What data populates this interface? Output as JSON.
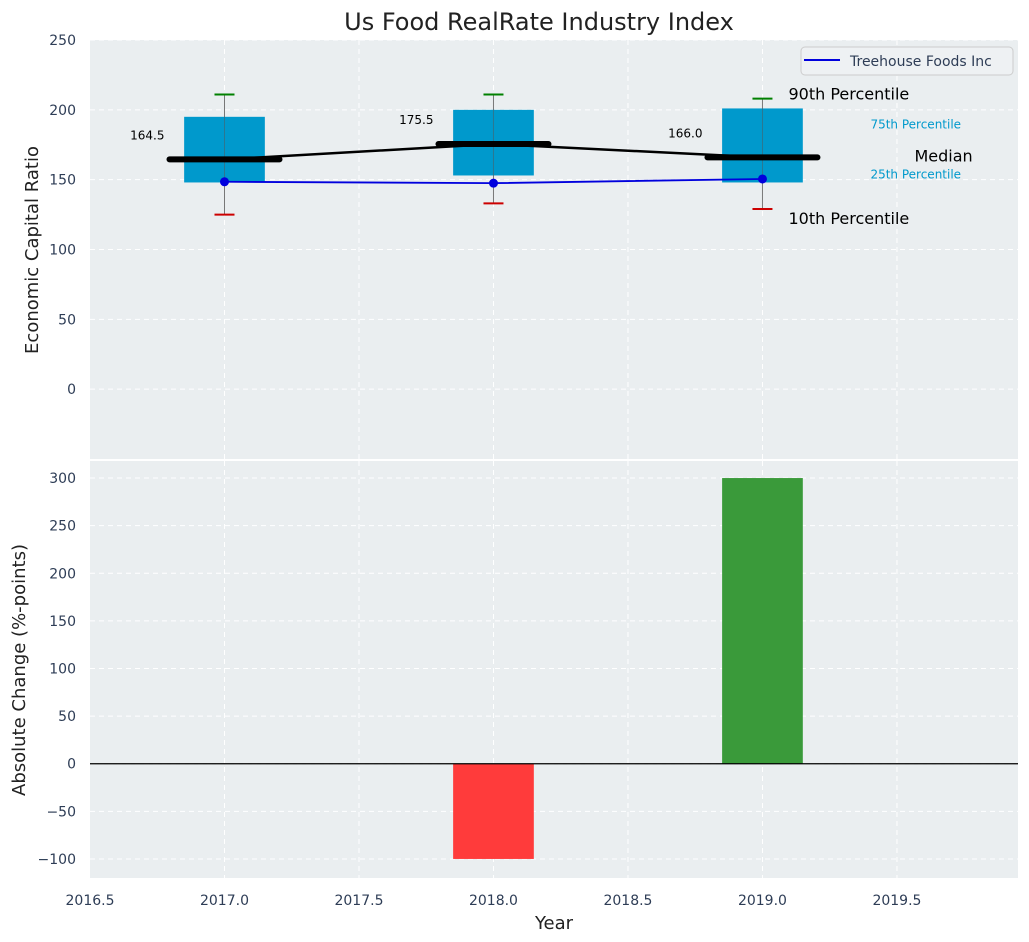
{
  "chart_data": [
    {
      "type": "box",
      "title": "Us Food RealRate Industry Index",
      "xlabel": "",
      "ylabel": "Economic Capital Ratio",
      "xlim": [
        2016.5,
        2019.95
      ],
      "ylim": [
        -50,
        250
      ],
      "yticks": [
        0,
        50,
        100,
        150,
        200,
        250
      ],
      "grid": true,
      "legend": {
        "position": "top-right",
        "entries": [
          "Treehouse Foods Inc"
        ]
      },
      "categories": [
        2017.0,
        2018.0,
        2019.0
      ],
      "boxes": [
        {
          "x": 2017.0,
          "p10": 125,
          "p25": 148,
          "median": 164.5,
          "p75": 195,
          "p90": 211
        },
        {
          "x": 2018.0,
          "p10": 133,
          "p25": 153,
          "median": 175.5,
          "p75": 200,
          "p90": 211
        },
        {
          "x": 2019.0,
          "p10": 129,
          "p25": 148,
          "median": 166.0,
          "p75": 201,
          "p90": 208
        }
      ],
      "median_labels": [
        "164.5",
        "175.5",
        "166.0"
      ],
      "series": [
        {
          "name": "Treehouse Foods Inc",
          "x": [
            2017.0,
            2018.0,
            2019.0
          ],
          "values": [
            148.5,
            147.5,
            150.5
          ]
        }
      ],
      "annotations": {
        "p90": "90th Percentile",
        "p75": "75th Percentile",
        "median": "Median",
        "p25": "25th Percentile",
        "p10": "10th Percentile"
      },
      "colors": {
        "box": "#0099cc",
        "median": "#000000",
        "whisker_high": "#008000",
        "whisker_low": "#cc0000",
        "series": "#0000dd",
        "background": "#eaeef0"
      }
    },
    {
      "type": "bar",
      "xlabel": "Year",
      "ylabel": "Absolute Change (%-points)",
      "xlim": [
        2016.5,
        2019.95
      ],
      "ylim": [
        -120,
        320
      ],
      "yticks": [
        -100,
        -50,
        0,
        50,
        100,
        150,
        200,
        250,
        300
      ],
      "ytick_labels": [
        "−100",
        "−50",
        "0",
        "50",
        "100",
        "150",
        "200",
        "250",
        "300"
      ],
      "xticks": [
        2016.5,
        2017.0,
        2017.5,
        2018.0,
        2018.5,
        2019.0,
        2019.5
      ],
      "xtick_labels": [
        "2016.5",
        "2017.0",
        "2017.5",
        "2018.0",
        "2018.5",
        "2019.0",
        "2019.5"
      ],
      "grid": true,
      "x": [
        2018.0,
        2019.0
      ],
      "values": [
        -100,
        300
      ],
      "bar_colors": [
        "#ff3b3b",
        "#3a9a3a"
      ]
    }
  ]
}
